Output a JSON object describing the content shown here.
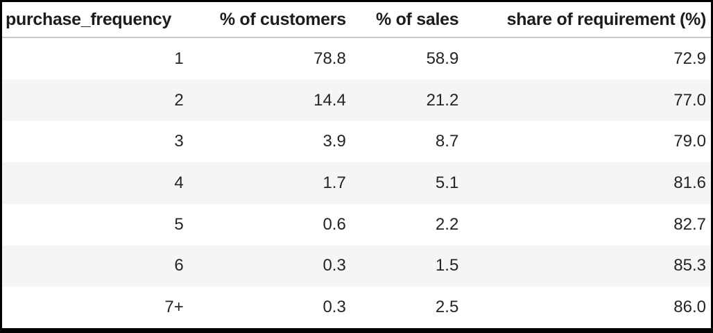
{
  "chart_data": {
    "type": "table",
    "title": "",
    "columns": [
      {
        "label": "purchase_frequency",
        "align": "left"
      },
      {
        "label": "% of customers",
        "align": "right"
      },
      {
        "label": "% of sales",
        "align": "right"
      },
      {
        "label": "share of requirement (%)",
        "align": "right"
      }
    ],
    "rows": [
      [
        "1",
        "78.8",
        "58.9",
        "72.9"
      ],
      [
        "2",
        "14.4",
        "21.2",
        "77.0"
      ],
      [
        "3",
        "3.9",
        "8.7",
        "79.0"
      ],
      [
        "4",
        "1.7",
        "5.1",
        "81.6"
      ],
      [
        "5",
        "0.6",
        "2.2",
        "82.7"
      ],
      [
        "6",
        "0.3",
        "1.5",
        "85.3"
      ],
      [
        "7+",
        "0.3",
        "2.5",
        "86.0"
      ]
    ],
    "layout": {
      "striped_row_indices": [
        1,
        3,
        5
      ],
      "grid": "horizontal-stripes-only"
    }
  },
  "colors": {
    "border": "#000000",
    "header_separator": "#c9c9c9",
    "row_stripe": "#f5f5f5",
    "body_text": "#252423",
    "header_text": "#1c1c1c",
    "background": "#ffffff"
  }
}
